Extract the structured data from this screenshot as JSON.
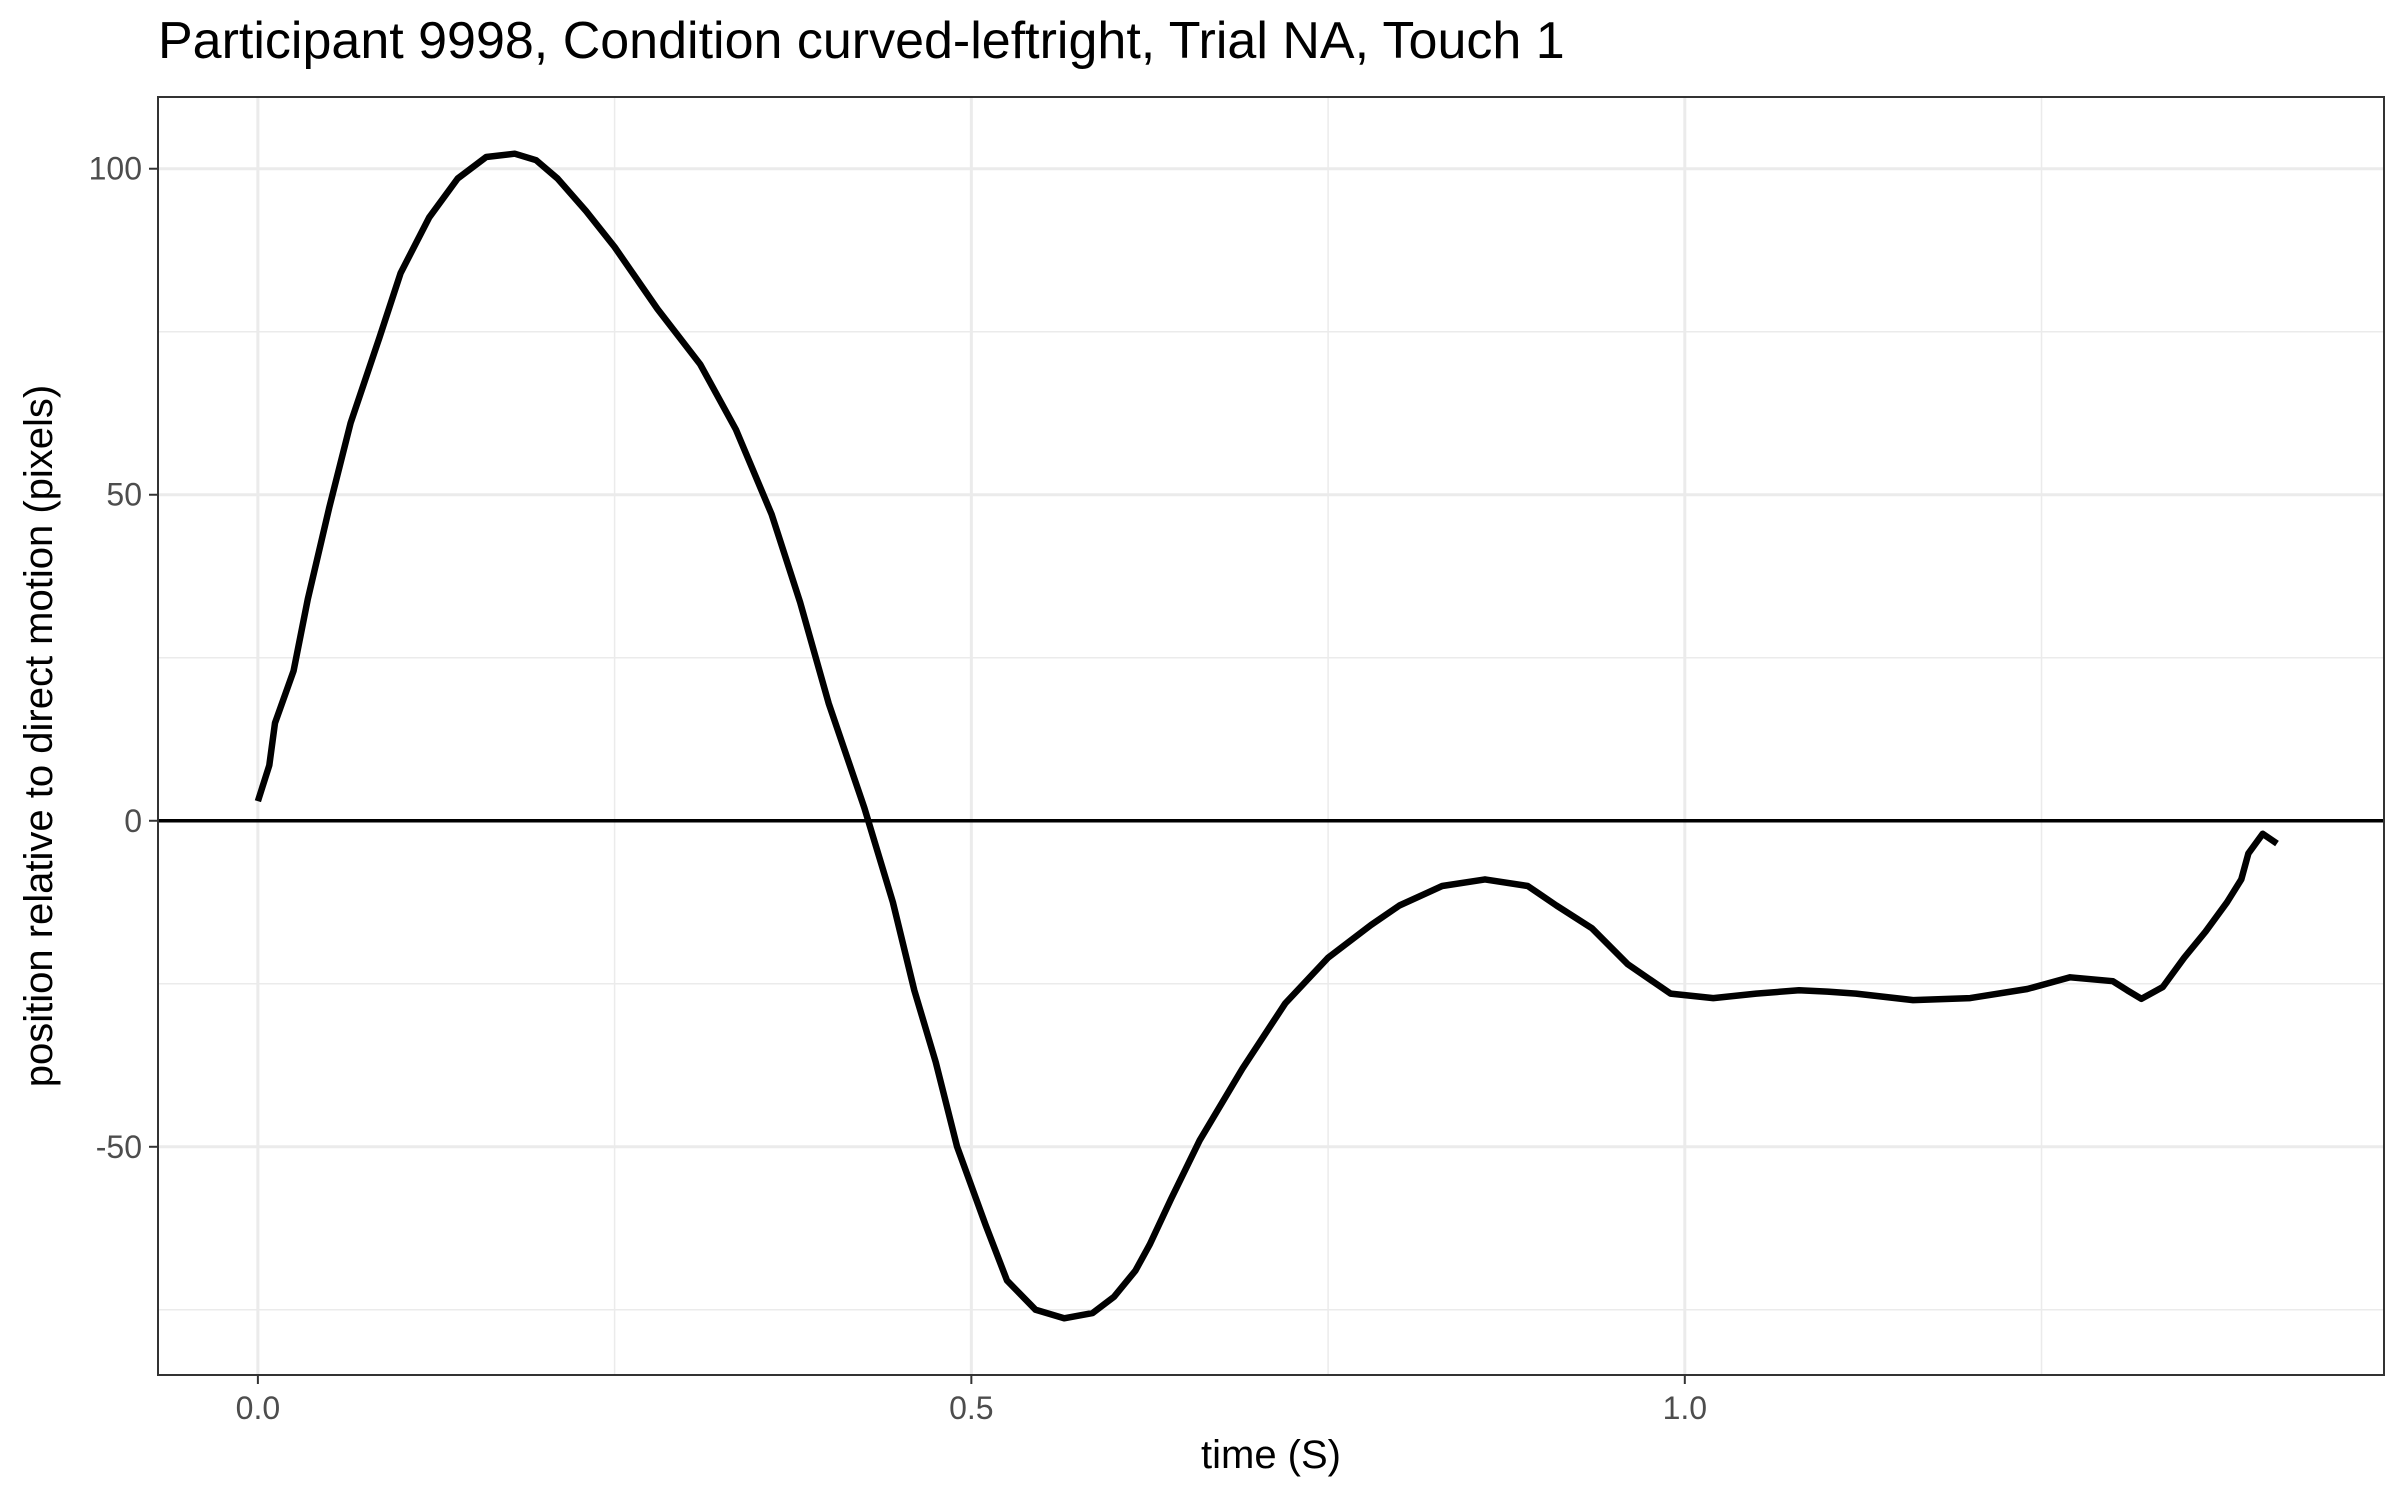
{
  "chart_data": {
    "type": "line",
    "title": "Participant 9998, Condition curved-leftright, Trial NA, Touch 1",
    "xlabel": "time (S)",
    "ylabel": "position relative to direct motion (pixels)",
    "xlim": [
      -0.07,
      1.49
    ],
    "ylim": [
      -85,
      111
    ],
    "x_ticks": [
      0.0,
      0.5,
      1.0
    ],
    "x_tick_labels": [
      "0.0",
      "0.5",
      "1.0"
    ],
    "y_ticks": [
      -50,
      0,
      50,
      100
    ],
    "y_tick_labels": [
      "-50",
      "0",
      "50",
      "100"
    ],
    "reference_line_y": 0,
    "grid": true,
    "legend": "none",
    "colors": {
      "line": "#000000",
      "grid": "#ebebeb",
      "panel_border": "#333333",
      "tick_label": "#4d4d4d"
    },
    "series": [
      {
        "x": [
          0.0,
          0.008,
          0.012,
          0.025,
          0.035,
          0.05,
          0.065,
          0.085,
          0.1,
          0.12,
          0.14,
          0.16,
          0.18,
          0.195,
          0.21,
          0.23,
          0.25,
          0.28,
          0.31,
          0.335,
          0.36,
          0.38,
          0.4,
          0.425,
          0.445,
          0.46,
          0.475,
          0.49,
          0.51,
          0.525,
          0.545,
          0.565,
          0.585,
          0.6,
          0.615,
          0.625,
          0.64,
          0.66,
          0.69,
          0.72,
          0.75,
          0.78,
          0.8,
          0.83,
          0.86,
          0.89,
          0.91,
          0.935,
          0.96,
          0.99,
          1.02,
          1.05,
          1.08,
          1.1,
          1.12,
          1.16,
          1.2,
          1.24,
          1.27,
          1.3,
          1.31,
          1.32,
          1.335,
          1.35,
          1.365,
          1.38,
          1.39,
          1.395,
          1.405,
          1.415
        ],
        "y": [
          3.0,
          8.5,
          15.0,
          23.0,
          34.0,
          48.0,
          61.0,
          74.0,
          84.0,
          92.5,
          98.5,
          101.8,
          102.3,
          101.3,
          98.5,
          93.5,
          88.0,
          78.5,
          70.0,
          60.0,
          47.0,
          33.5,
          18.0,
          2.0,
          -12.5,
          -26.0,
          -37.0,
          -50.0,
          -62.0,
          -70.5,
          -75.0,
          -76.3,
          -75.5,
          -73.0,
          -69.0,
          -65.0,
          -58.0,
          -49.0,
          -38.0,
          -28.0,
          -21.0,
          -16.0,
          -13.0,
          -10.0,
          -9.0,
          -10.0,
          -13.0,
          -16.5,
          -22.0,
          -26.5,
          -27.2,
          -26.5,
          -26.0,
          -26.2,
          -26.5,
          -27.5,
          -27.2,
          -25.8,
          -24.0,
          -24.6,
          -26.0,
          -27.3,
          -25.5,
          -21.0,
          -17.0,
          -12.5,
          -9.0,
          -5.0,
          -2.0,
          -3.5
        ]
      }
    ]
  }
}
